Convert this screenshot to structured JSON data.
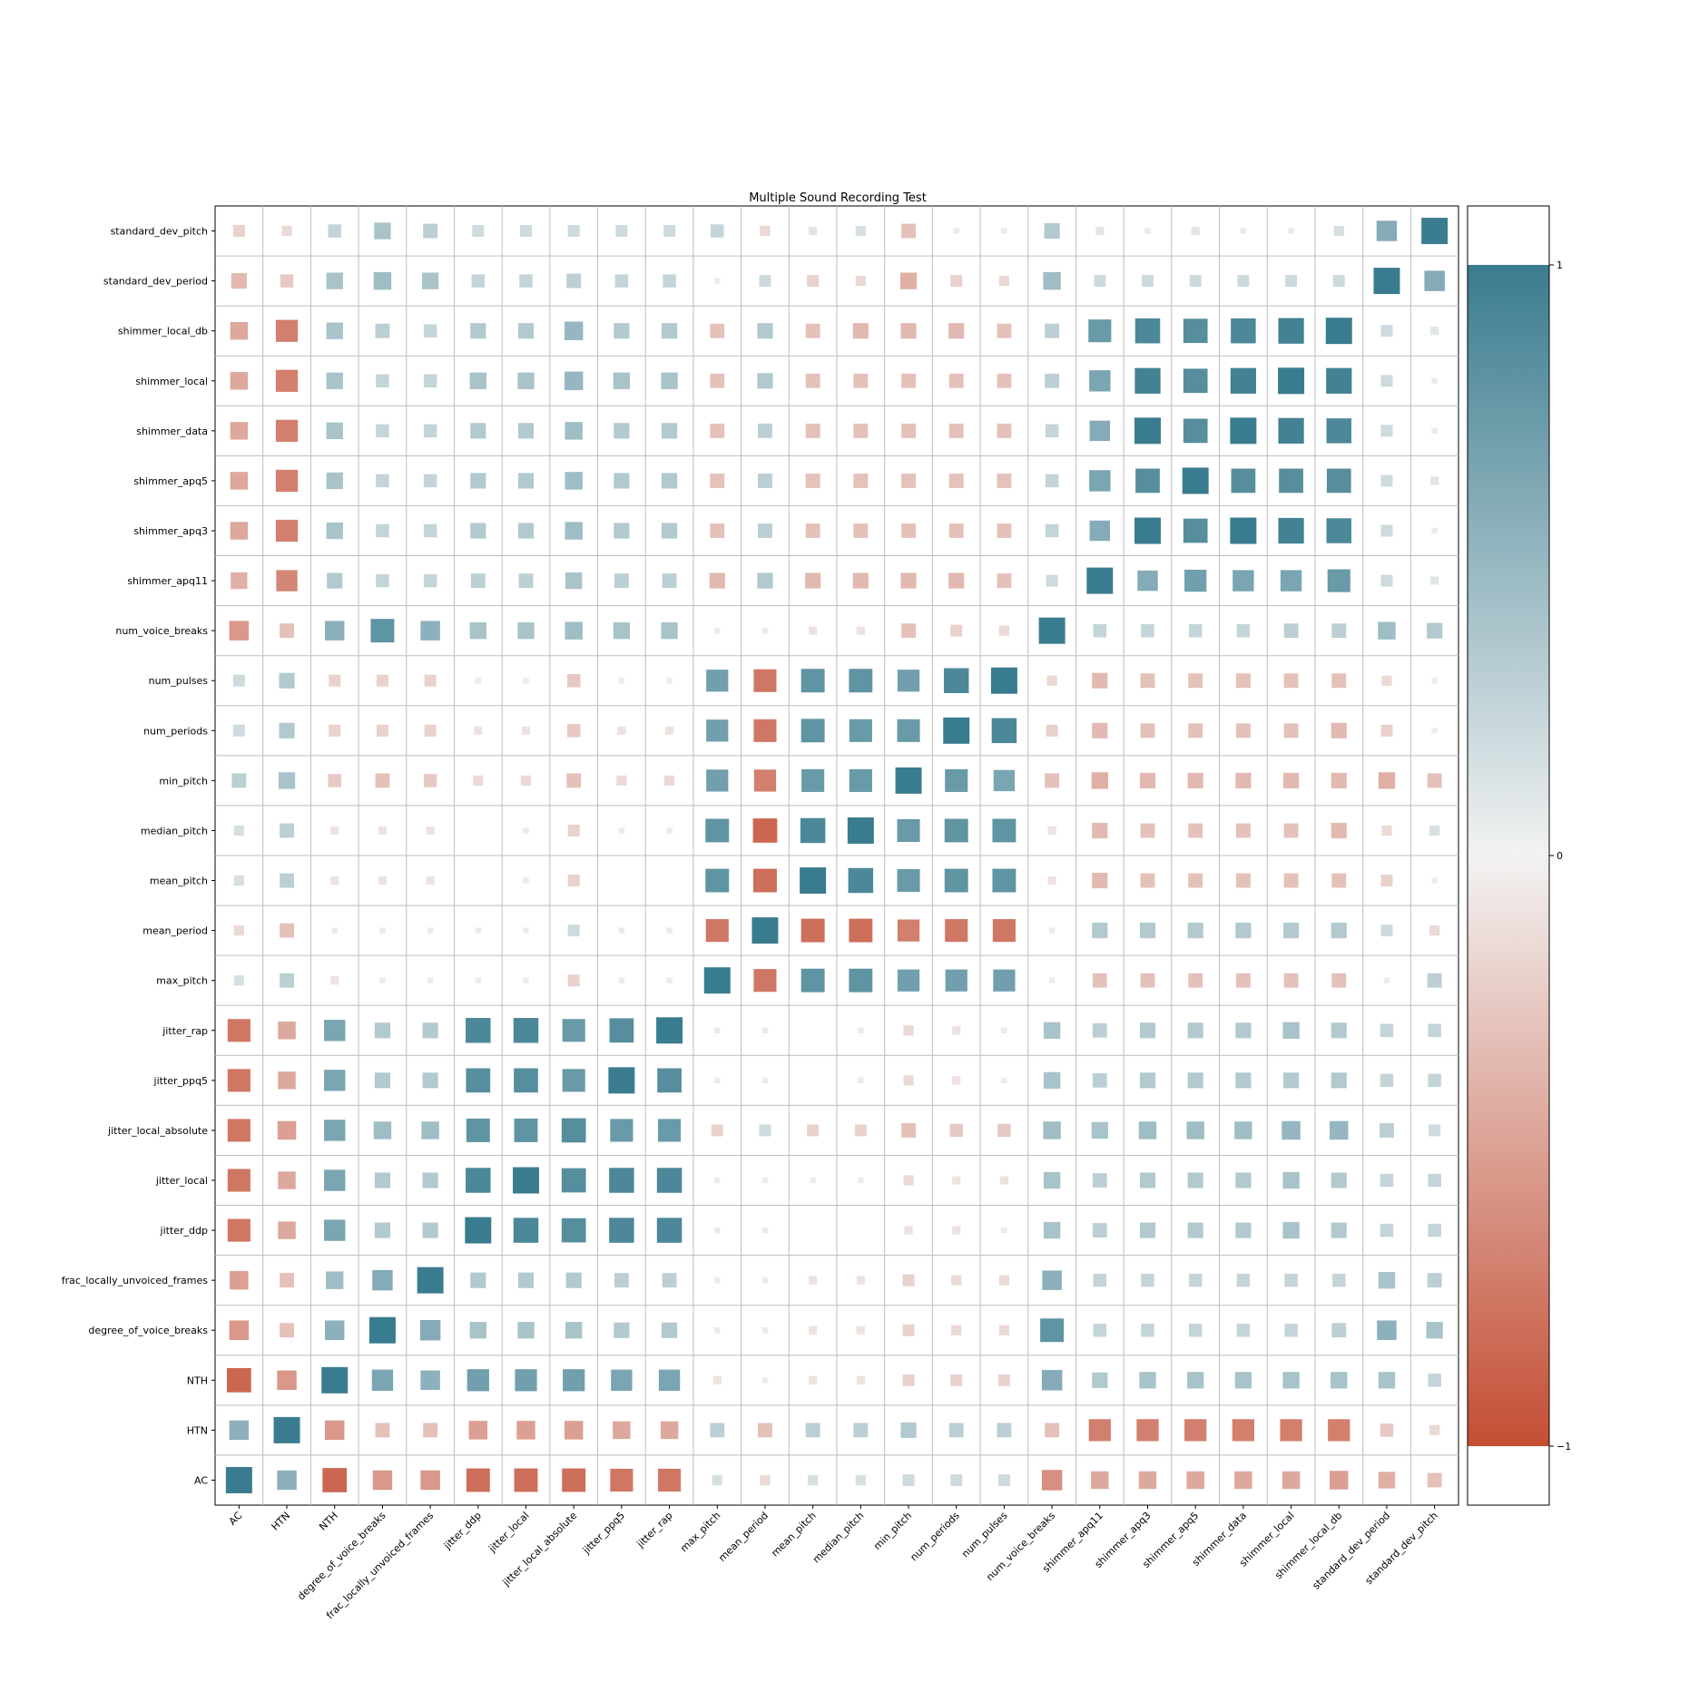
{
  "chart_data": {
    "type": "heatmap",
    "title": "Multiple Sound Recording Test",
    "x_labels": [
      "AC",
      "HTN",
      "NTH",
      "degree_of_voice_breaks",
      "frac_locally_unvoiced_frames",
      "jitter_ddp",
      "jitter_local",
      "jitter_local_absolute",
      "jitter_ppq5",
      "jitter_rap",
      "max_pitch",
      "mean_period",
      "mean_pitch",
      "median_pitch",
      "min_pitch",
      "num_periods",
      "num_pulses",
      "num_voice_breaks",
      "shimmer_apq11",
      "shimmer_apq3",
      "shimmer_apq5",
      "shimmer_data",
      "shimmer_local",
      "shimmer_local_db",
      "standard_dev_period",
      "standard_dev_pitch"
    ],
    "y_labels": [
      "AC",
      "HTN",
      "NTH",
      "degree_of_voice_breaks",
      "frac_locally_unvoiced_frames",
      "jitter_ddp",
      "jitter_local",
      "jitter_local_absolute",
      "jitter_ppq5",
      "jitter_rap",
      "max_pitch",
      "mean_period",
      "mean_pitch",
      "median_pitch",
      "min_pitch",
      "num_periods",
      "num_pulses",
      "num_voice_breaks",
      "shimmer_apq11",
      "shimmer_apq3",
      "shimmer_apq5",
      "shimmer_data",
      "shimmer_local",
      "shimmer_local_db",
      "standard_dev_period",
      "standard_dev_pitch"
    ],
    "values": [
      [
        1.0,
        0.55,
        -0.85,
        -0.55,
        -0.55,
        -0.8,
        -0.8,
        -0.8,
        -0.75,
        -0.75,
        0.15,
        -0.15,
        0.15,
        0.15,
        0.2,
        0.2,
        0.2,
        -0.6,
        -0.45,
        -0.45,
        -0.45,
        -0.45,
        -0.45,
        -0.5,
        -0.4,
        -0.3
      ],
      [
        0.55,
        1.0,
        -0.55,
        -0.3,
        -0.3,
        -0.5,
        -0.5,
        -0.5,
        -0.45,
        -0.45,
        0.3,
        -0.3,
        0.3,
        0.3,
        0.35,
        0.3,
        0.3,
        -0.3,
        -0.7,
        -0.7,
        -0.7,
        -0.7,
        -0.7,
        -0.7,
        -0.25,
        -0.15
      ],
      [
        -0.85,
        -0.55,
        1.0,
        0.65,
        0.55,
        0.7,
        0.7,
        0.7,
        0.65,
        0.65,
        -0.1,
        0.05,
        -0.1,
        -0.1,
        -0.2,
        -0.2,
        -0.2,
        0.6,
        0.35,
        0.4,
        0.4,
        0.4,
        0.4,
        0.4,
        0.4,
        0.25
      ],
      [
        -0.55,
        -0.3,
        0.55,
        1.0,
        0.6,
        0.4,
        0.4,
        0.4,
        0.35,
        0.35,
        0.05,
        0.05,
        -0.1,
        -0.1,
        -0.2,
        -0.15,
        -0.15,
        0.8,
        0.25,
        0.25,
        0.25,
        0.25,
        0.25,
        0.3,
        0.55,
        0.4
      ],
      [
        -0.5,
        -0.3,
        0.45,
        0.6,
        1.0,
        0.35,
        0.35,
        0.35,
        0.3,
        0.3,
        0.05,
        0.05,
        -0.1,
        -0.1,
        -0.2,
        -0.15,
        -0.15,
        0.55,
        0.25,
        0.25,
        0.25,
        0.25,
        0.25,
        0.25,
        0.4,
        0.3
      ],
      [
        -0.75,
        -0.45,
        0.65,
        0.35,
        0.35,
        1.0,
        0.9,
        0.85,
        0.9,
        0.9,
        0.05,
        0.05,
        0.0,
        0.0,
        -0.1,
        -0.1,
        -0.05,
        0.4,
        0.3,
        0.35,
        0.35,
        0.35,
        0.4,
        0.35,
        0.25,
        0.25
      ],
      [
        -0.75,
        -0.45,
        0.65,
        0.35,
        0.35,
        0.9,
        1.0,
        0.85,
        0.9,
        0.9,
        0.05,
        0.05,
        0.05,
        0.05,
        -0.15,
        -0.1,
        -0.1,
        0.4,
        0.3,
        0.35,
        0.35,
        0.35,
        0.4,
        0.35,
        0.25,
        0.25
      ],
      [
        -0.75,
        -0.5,
        0.65,
        0.45,
        0.45,
        0.8,
        0.8,
        0.85,
        0.75,
        0.75,
        -0.2,
        0.2,
        -0.2,
        -0.2,
        -0.3,
        -0.25,
        -0.25,
        0.45,
        0.4,
        0.45,
        0.45,
        0.45,
        0.5,
        0.5,
        0.3,
        0.2
      ],
      [
        -0.75,
        -0.45,
        0.65,
        0.35,
        0.35,
        0.85,
        0.85,
        0.75,
        1.0,
        0.85,
        0.05,
        0.05,
        0.0,
        0.05,
        -0.15,
        -0.1,
        -0.05,
        0.4,
        0.3,
        0.35,
        0.35,
        0.35,
        0.35,
        0.35,
        0.25,
        0.25
      ],
      [
        -0.75,
        -0.45,
        0.65,
        0.35,
        0.35,
        0.9,
        0.9,
        0.75,
        0.85,
        1.0,
        0.05,
        0.05,
        0.0,
        0.05,
        -0.15,
        -0.1,
        -0.05,
        0.4,
        0.3,
        0.35,
        0.35,
        0.35,
        0.4,
        0.35,
        0.25,
        0.25
      ],
      [
        0.15,
        0.3,
        -0.1,
        -0.05,
        -0.05,
        -0.05,
        -0.05,
        -0.2,
        -0.05,
        -0.05,
        1.0,
        -0.75,
        0.8,
        0.8,
        0.7,
        0.7,
        0.7,
        -0.05,
        -0.3,
        -0.3,
        -0.3,
        -0.3,
        -0.3,
        -0.3,
        -0.05,
        0.3
      ],
      [
        -0.15,
        -0.3,
        0.05,
        0.05,
        0.05,
        0.05,
        0.05,
        0.2,
        0.05,
        0.05,
        -0.75,
        1.0,
        -0.8,
        -0.8,
        -0.7,
        -0.75,
        -0.75,
        0.05,
        0.35,
        0.35,
        0.35,
        0.35,
        0.35,
        0.35,
        0.2,
        -0.15
      ],
      [
        0.15,
        0.3,
        -0.1,
        -0.1,
        -0.1,
        0.0,
        0.05,
        -0.2,
        0.0,
        0.0,
        0.8,
        -0.8,
        1.0,
        0.9,
        0.75,
        0.8,
        0.8,
        -0.1,
        -0.35,
        -0.3,
        -0.3,
        -0.3,
        -0.3,
        -0.3,
        -0.2,
        0.05
      ],
      [
        0.15,
        0.3,
        -0.1,
        -0.1,
        -0.1,
        0.0,
        0.05,
        -0.2,
        0.05,
        0.05,
        0.8,
        -0.85,
        0.9,
        1.0,
        0.75,
        0.8,
        0.8,
        -0.1,
        -0.35,
        -0.3,
        -0.3,
        -0.3,
        -0.3,
        -0.35,
        -0.15,
        0.15
      ],
      [
        0.3,
        0.4,
        -0.25,
        -0.3,
        -0.25,
        -0.15,
        -0.15,
        -0.3,
        -0.15,
        -0.15,
        0.7,
        -0.7,
        0.75,
        0.75,
        1.0,
        0.75,
        0.65,
        -0.3,
        -0.4,
        -0.35,
        -0.35,
        -0.35,
        -0.35,
        -0.35,
        -0.4,
        -0.3
      ],
      [
        0.2,
        0.35,
        -0.2,
        -0.2,
        -0.2,
        -0.1,
        -0.1,
        -0.25,
        -0.1,
        -0.1,
        0.7,
        -0.75,
        0.8,
        0.75,
        0.75,
        1.0,
        0.9,
        -0.2,
        -0.35,
        -0.3,
        -0.3,
        -0.3,
        -0.3,
        -0.35,
        -0.2,
        -0.05
      ],
      [
        0.2,
        0.35,
        -0.2,
        -0.2,
        -0.2,
        -0.05,
        -0.05,
        -0.25,
        -0.05,
        -0.05,
        0.7,
        -0.75,
        0.8,
        0.8,
        0.7,
        0.9,
        1.0,
        -0.15,
        -0.35,
        -0.3,
        -0.3,
        -0.3,
        -0.3,
        -0.3,
        -0.15,
        -0.05
      ],
      [
        -0.55,
        -0.3,
        0.55,
        0.8,
        0.55,
        0.4,
        0.4,
        0.45,
        0.4,
        0.4,
        -0.05,
        0.05,
        -0.1,
        -0.1,
        -0.3,
        -0.2,
        -0.15,
        1.0,
        0.25,
        0.25,
        0.25,
        0.25,
        0.3,
        0.3,
        0.45,
        0.35
      ],
      [
        -0.4,
        -0.65,
        0.35,
        0.25,
        0.25,
        0.3,
        0.3,
        0.4,
        0.3,
        0.3,
        -0.35,
        0.35,
        -0.35,
        -0.35,
        -0.35,
        -0.35,
        -0.3,
        0.2,
        1.0,
        0.6,
        0.7,
        0.65,
        0.65,
        0.75,
        0.2,
        0.1
      ],
      [
        -0.45,
        -0.7,
        0.4,
        0.25,
        0.25,
        0.35,
        0.35,
        0.45,
        0.35,
        0.35,
        -0.3,
        0.3,
        -0.3,
        -0.3,
        -0.3,
        -0.3,
        -0.3,
        0.25,
        0.6,
        1.0,
        0.85,
        1.0,
        0.95,
        0.9,
        0.2,
        0.05
      ],
      [
        -0.45,
        -0.7,
        0.4,
        0.25,
        0.25,
        0.35,
        0.35,
        0.45,
        0.35,
        0.35,
        -0.3,
        0.3,
        -0.3,
        -0.3,
        -0.3,
        -0.3,
        -0.3,
        0.25,
        0.65,
        0.85,
        1.0,
        0.85,
        0.85,
        0.85,
        0.2,
        0.1
      ],
      [
        -0.45,
        -0.7,
        0.4,
        0.25,
        0.25,
        0.35,
        0.35,
        0.45,
        0.35,
        0.35,
        -0.3,
        0.3,
        -0.3,
        -0.3,
        -0.3,
        -0.3,
        -0.3,
        0.25,
        0.6,
        1.0,
        0.85,
        1.0,
        0.95,
        0.9,
        0.2,
        0.05
      ],
      [
        -0.45,
        -0.7,
        0.4,
        0.25,
        0.25,
        0.4,
        0.4,
        0.5,
        0.4,
        0.4,
        -0.3,
        0.35,
        -0.3,
        -0.3,
        -0.3,
        -0.3,
        -0.3,
        0.3,
        0.65,
        0.95,
        0.85,
        0.95,
        1.0,
        0.95,
        0.2,
        0.05
      ],
      [
        -0.45,
        -0.7,
        0.4,
        0.3,
        0.25,
        0.35,
        0.35,
        0.5,
        0.35,
        0.35,
        -0.3,
        0.35,
        -0.3,
        -0.35,
        -0.35,
        -0.35,
        -0.3,
        0.3,
        0.75,
        0.9,
        0.85,
        0.9,
        0.95,
        1.0,
        0.2,
        0.1
      ],
      [
        -0.35,
        -0.25,
        0.4,
        0.45,
        0.4,
        0.25,
        0.25,
        0.3,
        0.25,
        0.25,
        -0.05,
        0.2,
        -0.2,
        -0.15,
        -0.4,
        -0.2,
        -0.15,
        0.45,
        0.2,
        0.2,
        0.2,
        0.2,
        0.2,
        0.2,
        1.0,
        0.6
      ],
      [
        -0.2,
        -0.15,
        0.25,
        0.4,
        0.3,
        0.2,
        0.2,
        0.2,
        0.2,
        0.2,
        0.25,
        -0.15,
        0.1,
        0.15,
        -0.3,
        -0.05,
        -0.05,
        0.35,
        0.1,
        0.05,
        0.1,
        0.05,
        0.05,
        0.15,
        0.6,
        1.0
      ]
    ],
    "vmin": -1,
    "vmax": 1,
    "colorbar": {
      "ticks": [
        1,
        0,
        -1
      ],
      "tick_labels": [
        "1",
        "0",
        "−1"
      ],
      "position": "right"
    },
    "colors": {
      "negative": "#c44e34",
      "middle": "#f2f2f2",
      "positive": "#3a7c8f"
    },
    "grid": true,
    "xlabel": "",
    "ylabel": ""
  }
}
